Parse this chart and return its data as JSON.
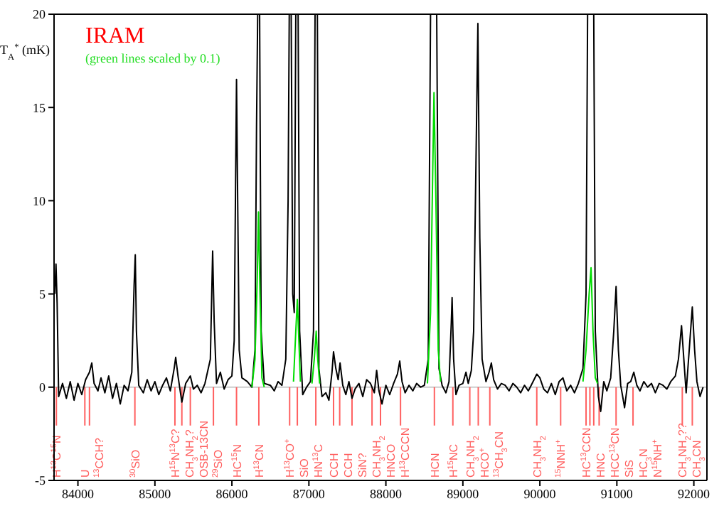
{
  "chart_data": {
    "type": "line",
    "ylabel": "T$_{A}$$^{*}$ (mK)",
    "annotations": [
      "IRAM",
      "(green lines scaled by 0.1)"
    ],
    "xlim": [
      83690,
      92170
    ],
    "xticks": [
      84000,
      85000,
      86000,
      87000,
      88000,
      89000,
      90000,
      91000,
      92000
    ],
    "ylim": [
      -5,
      20
    ],
    "yticks": [
      -5,
      0,
      5,
      10,
      15,
      20
    ],
    "grid": false,
    "legend": false,
    "marker": "none",
    "line_style": "solid",
    "series": [
      {
        "color": "#000000",
        "x": [
          83700,
          83715,
          83730,
          83750,
          83800,
          83850,
          83900,
          83950,
          84000,
          84050,
          84100,
          84150,
          84180,
          84210,
          84260,
          84300,
          84350,
          84400,
          84450,
          84500,
          84550,
          84600,
          84650,
          84700,
          84730,
          84745,
          84760,
          84790,
          84850,
          84900,
          84950,
          85000,
          85050,
          85100,
          85150,
          85200,
          85250,
          85270,
          85300,
          85350,
          85400,
          85460,
          85500,
          85550,
          85600,
          85650,
          85720,
          85750,
          85770,
          85800,
          85850,
          85900,
          85950,
          86000,
          86030,
          86050,
          86060,
          86075,
          86095,
          86130,
          86200,
          86260,
          86300,
          86320,
          86335,
          86360,
          86380,
          86420,
          86500,
          86550,
          86600,
          86650,
          86700,
          86730,
          86745,
          86770,
          86790,
          86810,
          86830,
          86860,
          86880,
          86920,
          86970,
          87020,
          87060,
          87080,
          87110,
          87130,
          87170,
          87220,
          87260,
          87300,
          87320,
          87350,
          87380,
          87405,
          87440,
          87480,
          87520,
          87560,
          87600,
          87650,
          87700,
          87750,
          87800,
          87850,
          87880,
          87910,
          87950,
          88000,
          88050,
          88100,
          88150,
          88180,
          88210,
          88250,
          88300,
          88350,
          88400,
          88450,
          88500,
          88550,
          88580,
          88660,
          88690,
          88730,
          88780,
          88820,
          88850,
          88860,
          88880,
          88910,
          88950,
          89000,
          89040,
          89070,
          89110,
          89140,
          89170,
          89195,
          89220,
          89250,
          89300,
          89340,
          89370,
          89400,
          89450,
          89500,
          89550,
          89600,
          89650,
          89700,
          89750,
          89800,
          89850,
          89900,
          89960,
          90000,
          90050,
          90100,
          90150,
          90200,
          90250,
          90300,
          90350,
          90400,
          90450,
          90500,
          90560,
          90600,
          90620,
          90700,
          90720,
          90760,
          90790,
          90830,
          90870,
          90920,
          90960,
          90990,
          91020,
          91050,
          91080,
          91100,
          91140,
          91180,
          91220,
          91260,
          91300,
          91350,
          91400,
          91450,
          91500,
          91550,
          91600,
          91650,
          91700,
          91760,
          91800,
          91840,
          91870,
          91900,
          91940,
          91980,
          92010,
          92040,
          92080,
          92120
        ],
        "values": [
          5.0,
          6.6,
          4.5,
          -0.5,
          0.2,
          -0.6,
          0.3,
          -0.7,
          0.2,
          -0.4,
          0.4,
          0.8,
          1.3,
          0.2,
          -0.2,
          0.5,
          -0.3,
          0.6,
          -0.6,
          0.2,
          -0.9,
          0.1,
          -0.2,
          0.8,
          5.5,
          7.1,
          3.0,
          0.1,
          -0.3,
          0.4,
          -0.2,
          0.3,
          -0.4,
          0.1,
          0.5,
          -0.2,
          1.0,
          1.6,
          0.6,
          -0.8,
          0.2,
          0.6,
          -0.1,
          0.1,
          -0.3,
          0.2,
          1.5,
          7.3,
          3.5,
          0.2,
          0.8,
          -0.1,
          0.4,
          0.6,
          2.5,
          12.0,
          16.5,
          10.0,
          2.0,
          0.5,
          0.3,
          0.0,
          2.0,
          14.0,
          20,
          20,
          3.0,
          0.2,
          0.1,
          -0.2,
          0.3,
          0.1,
          1.5,
          10.0,
          20,
          20,
          5.0,
          4.0,
          20,
          20,
          3.0,
          -0.4,
          0.0,
          0.3,
          3.0,
          20,
          20,
          1.0,
          -0.5,
          -0.3,
          -0.7,
          0.8,
          1.9,
          1.0,
          0.4,
          1.3,
          0.1,
          -0.4,
          0.3,
          -0.6,
          -0.1,
          0.2,
          -0.5,
          0.4,
          0.2,
          -0.3,
          0.9,
          -0.2,
          -0.9,
          0.1,
          -0.4,
          0.2,
          0.7,
          1.4,
          0.3,
          -0.3,
          0.1,
          -0.2,
          0.2,
          0.0,
          0.1,
          1.5,
          20,
          20,
          1.0,
          0.1,
          -0.3,
          0.3,
          3.5,
          4.8,
          1.5,
          -0.4,
          0.1,
          0.2,
          0.8,
          0.2,
          0.9,
          3.0,
          12.0,
          19.5,
          8.0,
          1.5,
          0.3,
          0.8,
          1.3,
          0.4,
          -0.1,
          0.2,
          0.1,
          -0.2,
          0.2,
          0.0,
          -0.3,
          0.1,
          -0.2,
          0.2,
          0.7,
          0.5,
          -0.1,
          -0.3,
          0.2,
          -0.4,
          0.3,
          0.5,
          -0.2,
          0.1,
          -0.3,
          0.2,
          1.0,
          5.0,
          20,
          20,
          3.0,
          -0.5,
          -1.3,
          0.3,
          -0.2,
          0.5,
          3.0,
          5.4,
          2.0,
          0.1,
          -0.6,
          -1.1,
          0.2,
          0.3,
          0.8,
          0.1,
          -0.2,
          0.3,
          0.0,
          0.2,
          -0.3,
          0.2,
          0.1,
          -0.1,
          0.3,
          0.6,
          1.5,
          3.3,
          1.5,
          -0.3,
          2.0,
          4.3,
          2.0,
          0.3,
          -0.5,
          0.0
        ]
      },
      {
        "color": "#00dd00",
        "x": [
          86260,
          86300,
          86330,
          86345,
          86365,
          86390,
          86420,
          86600,
          86800,
          86830,
          86850,
          86870,
          86890,
          86960,
          87040,
          87070,
          87095,
          87115,
          87140,
          88000,
          88540,
          88580,
          88610,
          88625,
          88650,
          88680,
          88710,
          89500,
          90560,
          90600,
          90640,
          90665,
          90690,
          90720,
          90750
        ],
        "values": [
          0.0,
          1.5,
          6.0,
          9.4,
          5.0,
          0.5,
          0.0,
          null,
          0.3,
          3.0,
          4.7,
          2.5,
          0.3,
          null,
          0.2,
          1.5,
          3.0,
          1.5,
          0.2,
          null,
          0.2,
          4.0,
          12.0,
          15.8,
          10.0,
          2.0,
          0.3,
          null,
          0.3,
          2.0,
          5.0,
          6.4,
          3.0,
          0.5,
          0.2
        ]
      }
    ],
    "ref_lines": [
      {
        "axis": "y",
        "value": 0,
        "color": "#bbbbbb"
      },
      {
        "axis": "x",
        "value": 83720,
        "label": "H$^{13}$C$^{15}$N",
        "color": "#ff6060"
      },
      {
        "axis": "x",
        "value": 84090,
        "label": "U",
        "color": "#ff6060"
      },
      {
        "axis": "x",
        "value": 84150,
        "label": "$^{13}$CCH?",
        "color": "#ff6060"
      },
      {
        "axis": "x",
        "value": 84740,
        "label": "$^{30}$SiO",
        "color": "#ff6060"
      },
      {
        "axis": "x",
        "value": 85260,
        "label": "H$^{15}$N$^{13}$C?",
        "color": "#ff6060"
      },
      {
        "axis": "x",
        "value": 85350,
        "label": "CH$_{3}$NH$_{2}$?",
        "color": "#ff6060"
      },
      {
        "axis": "x",
        "value": 85460,
        "label": "OSB-13CN",
        "color": "#ff6060"
      },
      {
        "axis": "x",
        "value": 85760,
        "label": "$^{29}$SiO",
        "color": "#ff6060"
      },
      {
        "axis": "x",
        "value": 86060,
        "label": "HC$^{15}$N",
        "color": "#ff6060"
      },
      {
        "axis": "x",
        "value": 86350,
        "label": "H$^{13}$CN",
        "color": "#ff6060"
      },
      {
        "axis": "x",
        "value": 86750,
        "label": "H$^{13}$CO$^{+}$",
        "color": "#ff6060"
      },
      {
        "axis": "x",
        "value": 86850,
        "label": "SiO",
        "color": "#ff6060"
      },
      {
        "axis": "x",
        "value": 87090,
        "label": "HN$^{13}$C",
        "color": "#ff6060"
      },
      {
        "axis": "x",
        "value": 87320,
        "label": "CCH",
        "color": "#ff6060"
      },
      {
        "axis": "x",
        "value": 87400,
        "label": "CCH",
        "color": "#ff6060"
      },
      {
        "axis": "x",
        "value": 87560,
        "label": "SiN?",
        "color": "#ff6060"
      },
      {
        "axis": "x",
        "value": 87820,
        "label": "CH$_{3}$NH$_{2}$",
        "color": "#ff6060"
      },
      {
        "axis": "x",
        "value": 87930,
        "label": "HNCO",
        "color": "#ff6060"
      },
      {
        "axis": "x",
        "value": 88190,
        "label": "H$^{13}$CCCN",
        "color": "#ff6060"
      },
      {
        "axis": "x",
        "value": 88630,
        "label": "HCN",
        "color": "#ff6060"
      },
      {
        "axis": "x",
        "value": 88870,
        "label": "H$^{15}$NC",
        "color": "#ff6060"
      },
      {
        "axis": "x",
        "value": 89090,
        "label": "CH$_{3}$NH$_{2}$",
        "color": "#ff6060"
      },
      {
        "axis": "x",
        "value": 89200,
        "label": "HCO$^{+}$",
        "color": "#ff6060"
      },
      {
        "axis": "x",
        "value": 89350,
        "label": "$^{13}$CH$_{3}$CN",
        "color": "#ff6060"
      },
      {
        "axis": "x",
        "value": 89960,
        "label": "CH$_{3}$NH$_{2}$",
        "color": "#ff6060"
      },
      {
        "axis": "x",
        "value": 90270,
        "label": "$^{15}$NNH$^{+}$",
        "color": "#ff6060"
      },
      {
        "axis": "x",
        "value": 90600,
        "label": "HC$^{13}$CCN",
        "color": "#ff6060"
      },
      {
        "axis": "x",
        "value": 90650,
        "label": "HNC",
        "color": "#ff6060"
      },
      {
        "axis": "x",
        "value": 90700,
        "label": "HCC$^{13}$CN",
        "color": "#ff6060"
      },
      {
        "axis": "x",
        "value": 90770,
        "label": "SiS",
        "color": "#ff6060"
      },
      {
        "axis": "x",
        "value": 90990,
        "label": "HC$_{3}$N",
        "color": "#ff6060"
      },
      {
        "axis": "x",
        "value": 91210,
        "label": "N$^{15}$NH$^{+}$",
        "color": "#ff6060"
      },
      {
        "axis": "x",
        "value": 91850,
        "label": "CH$_{3}$NH$_{2}$??",
        "color": "#ff6060"
      },
      {
        "axis": "x",
        "value": 91980,
        "label": "CH$_{3}$CN",
        "color": "#ff6060"
      }
    ]
  }
}
